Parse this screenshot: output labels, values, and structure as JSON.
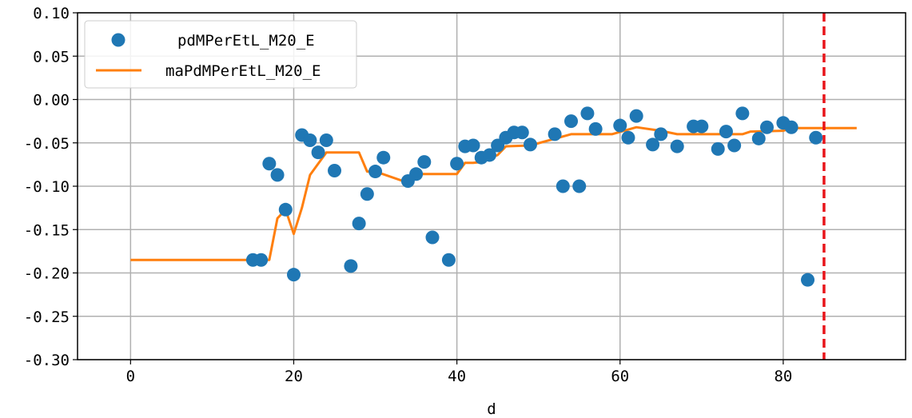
{
  "chart_data": {
    "type": "scatter",
    "title": "",
    "xlabel": "d",
    "ylabel": "",
    "xlim": [
      -6.5,
      95
    ],
    "ylim": [
      -0.3,
      0.1
    ],
    "grid": true,
    "legend_position": "top-left",
    "x_ticks": [
      0,
      20,
      40,
      60,
      80
    ],
    "x_tick_labels": [
      "0",
      "20",
      "40",
      "60",
      "80"
    ],
    "y_ticks": [
      0.1,
      0.05,
      0.0,
      -0.05,
      -0.1,
      -0.15,
      -0.2,
      -0.25,
      -0.3
    ],
    "y_tick_labels": [
      "0.10",
      "0.05",
      "0.00",
      "-0.05",
      "-0.10",
      "-0.15",
      "-0.20",
      "-0.25",
      "-0.30"
    ],
    "vline": {
      "x": 85,
      "color": "#e8141a",
      "style": "dashed"
    },
    "series": [
      {
        "name": "pdMPerEtL_M20_E",
        "kind": "scatter",
        "color": "#1f77b4",
        "points": [
          [
            15,
            -0.185
          ],
          [
            16,
            -0.185
          ],
          [
            17,
            -0.074
          ],
          [
            18,
            -0.087
          ],
          [
            19,
            -0.127
          ],
          [
            20,
            -0.202
          ],
          [
            21,
            -0.041
          ],
          [
            22,
            -0.047
          ],
          [
            23,
            -0.061
          ],
          [
            24,
            -0.047
          ],
          [
            25,
            -0.082
          ],
          [
            27,
            -0.192
          ],
          [
            28,
            -0.143
          ],
          [
            29,
            -0.109
          ],
          [
            30,
            -0.083
          ],
          [
            31,
            -0.067
          ],
          [
            34,
            -0.094
          ],
          [
            35,
            -0.086
          ],
          [
            36,
            -0.072
          ],
          [
            37,
            -0.159
          ],
          [
            39,
            -0.185
          ],
          [
            40,
            -0.074
          ],
          [
            41,
            -0.054
          ],
          [
            42,
            -0.053
          ],
          [
            43,
            -0.067
          ],
          [
            44,
            -0.064
          ],
          [
            45,
            -0.053
          ],
          [
            46,
            -0.044
          ],
          [
            47,
            -0.038
          ],
          [
            48,
            -0.038
          ],
          [
            49,
            -0.052
          ],
          [
            52,
            -0.04
          ],
          [
            53,
            -0.1
          ],
          [
            54,
            -0.025
          ],
          [
            55,
            -0.1
          ],
          [
            56,
            -0.016
          ],
          [
            57,
            -0.034
          ],
          [
            60,
            -0.03
          ],
          [
            61,
            -0.044
          ],
          [
            62,
            -0.019
          ],
          [
            64,
            -0.052
          ],
          [
            65,
            -0.04
          ],
          [
            67,
            -0.054
          ],
          [
            69,
            -0.031
          ],
          [
            70,
            -0.031
          ],
          [
            72,
            -0.057
          ],
          [
            73,
            -0.037
          ],
          [
            74,
            -0.053
          ],
          [
            75,
            -0.016
          ],
          [
            77,
            -0.045
          ],
          [
            78,
            -0.032
          ],
          [
            80,
            -0.027
          ],
          [
            81,
            -0.032
          ],
          [
            83,
            -0.208
          ],
          [
            84,
            -0.044
          ]
        ]
      },
      {
        "name": "maPdMPerEtL_M20_E",
        "kind": "line",
        "color": "#ff7f0e",
        "points": [
          [
            0,
            -0.185
          ],
          [
            17,
            -0.185
          ],
          [
            18,
            -0.137
          ],
          [
            19,
            -0.127
          ],
          [
            20,
            -0.155
          ],
          [
            21,
            -0.125
          ],
          [
            22,
            -0.087
          ],
          [
            24,
            -0.061
          ],
          [
            28,
            -0.061
          ],
          [
            29,
            -0.083
          ],
          [
            30,
            -0.083
          ],
          [
            34,
            -0.096
          ],
          [
            35,
            -0.086
          ],
          [
            40,
            -0.086
          ],
          [
            41,
            -0.073
          ],
          [
            42,
            -0.073
          ],
          [
            43,
            -0.072
          ],
          [
            45,
            -0.064
          ],
          [
            46,
            -0.054
          ],
          [
            49,
            -0.053
          ],
          [
            54,
            -0.04
          ],
          [
            59,
            -0.04
          ],
          [
            62,
            -0.032
          ],
          [
            65,
            -0.036
          ],
          [
            67,
            -0.04
          ],
          [
            75,
            -0.04
          ],
          [
            76,
            -0.037
          ],
          [
            80,
            -0.036
          ],
          [
            81,
            -0.033
          ],
          [
            89,
            -0.033
          ]
        ]
      }
    ]
  }
}
